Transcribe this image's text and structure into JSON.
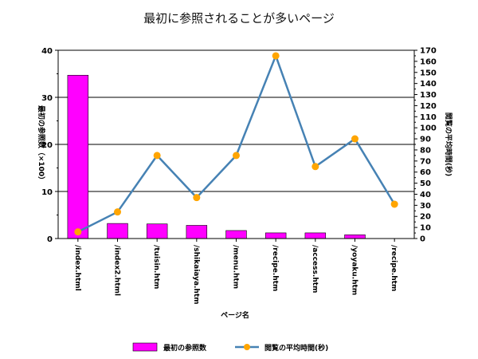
{
  "chart_data": {
    "type": "bar",
    "title": "最初に参照されることが多いページ",
    "xlabel": "ページ名",
    "ylabel_left": "最初の参照数（×100）",
    "ylabel_right": "閲覧の平均時間(秒)",
    "categories": [
      "/index.html",
      "/index2.html",
      "/tuisin.htm",
      "/shikaiaya.htm",
      "/menu.htm",
      "/recipe.htm",
      "/access.htm",
      "/yoyaku.htm",
      "/recipe.htm"
    ],
    "y_left": {
      "min": 0,
      "max": 40,
      "ticks": [
        0,
        10,
        20,
        30,
        40
      ]
    },
    "y_right": {
      "min": 0,
      "max": 170,
      "ticks": [
        0,
        10,
        20,
        30,
        40,
        50,
        60,
        70,
        80,
        90,
        100,
        110,
        120,
        130,
        140,
        150,
        160,
        170
      ]
    },
    "grid": true,
    "legend_position": "bottom",
    "series": [
      {
        "name": "最初の参照数",
        "type": "bar",
        "axis": "left",
        "color": "#ff00ff",
        "values": [
          34.7,
          3.2,
          3.1,
          2.8,
          1.7,
          1.2,
          1.2,
          0.8,
          0
        ]
      },
      {
        "name": "閲覧の平均時間(秒)",
        "type": "line",
        "axis": "right",
        "color": "#4682b4",
        "marker_color": "#ffa500",
        "values": [
          6,
          24,
          75,
          37,
          75,
          165,
          65,
          90,
          31
        ]
      }
    ]
  }
}
